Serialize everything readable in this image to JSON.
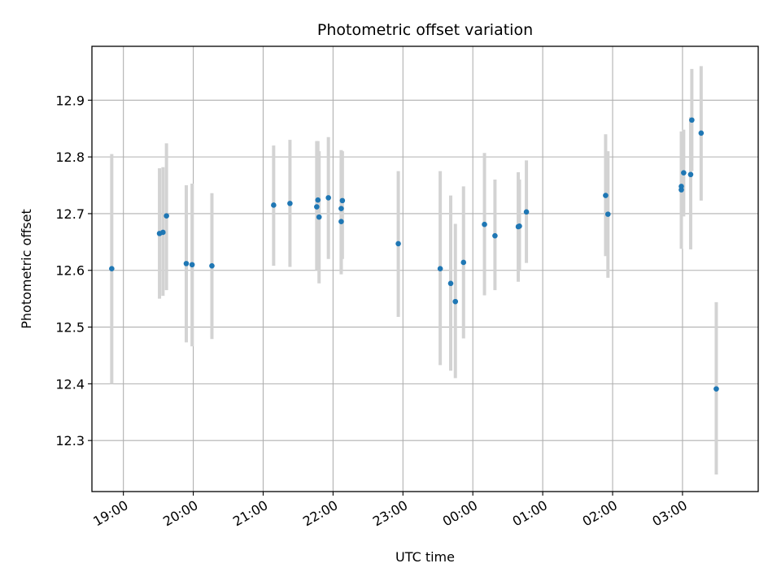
{
  "chart_data": {
    "type": "scatter",
    "title": "Photometric offset variation",
    "xlabel": "UTC time",
    "ylabel": "Photometric offset",
    "x_unit": "UTC time (HH:MM), points after midnight on the following day",
    "xlim": [
      "18:33",
      "04:05"
    ],
    "ylim": [
      12.21,
      12.995
    ],
    "x_ticks": [
      "19:00",
      "20:00",
      "21:00",
      "22:00",
      "23:00",
      "00:00",
      "01:00",
      "02:00",
      "03:00"
    ],
    "y_ticks": [
      12.3,
      12.4,
      12.5,
      12.6,
      12.7,
      12.8,
      12.9
    ],
    "grid": true,
    "colors": {
      "points": "#1f77b4",
      "errorbars": "#d3d3d3",
      "grid": "#b0b0b0"
    },
    "points": [
      {
        "x": "18:50",
        "y": 12.603,
        "lo": 12.4,
        "hi": 12.805
      },
      {
        "x": "19:31",
        "y": 12.665,
        "lo": 12.55,
        "hi": 12.78
      },
      {
        "x": "19:34",
        "y": 12.667,
        "lo": 12.555,
        "hi": 12.782
      },
      {
        "x": "19:37",
        "y": 12.696,
        "lo": 12.565,
        "hi": 12.824
      },
      {
        "x": "19:54",
        "y": 12.612,
        "lo": 12.473,
        "hi": 12.75
      },
      {
        "x": "19:59",
        "y": 12.61,
        "lo": 12.466,
        "hi": 12.753
      },
      {
        "x": "20:16",
        "y": 12.608,
        "lo": 12.479,
        "hi": 12.736
      },
      {
        "x": "21:09",
        "y": 12.715,
        "lo": 12.608,
        "hi": 12.82
      },
      {
        "x": "21:23",
        "y": 12.718,
        "lo": 12.606,
        "hi": 12.83
      },
      {
        "x": "21:46",
        "y": 12.712,
        "lo": 12.6,
        "hi": 12.828
      },
      {
        "x": "21:47",
        "y": 12.724,
        "lo": 12.61,
        "hi": 12.828
      },
      {
        "x": "21:48",
        "y": 12.694,
        "lo": 12.577,
        "hi": 12.81
      },
      {
        "x": "21:56",
        "y": 12.728,
        "lo": 12.62,
        "hi": 12.835
      },
      {
        "x": "22:07",
        "y": 12.686,
        "lo": 12.593,
        "hi": 12.79
      },
      {
        "x": "22:07",
        "y": 12.709,
        "lo": 12.6,
        "hi": 12.812
      },
      {
        "x": "22:08",
        "y": 12.723,
        "lo": 12.62,
        "hi": 12.81
      },
      {
        "x": "22:56",
        "y": 12.647,
        "lo": 12.518,
        "hi": 12.775
      },
      {
        "x": "23:32",
        "y": 12.603,
        "lo": 12.433,
        "hi": 12.775
      },
      {
        "x": "23:41",
        "y": 12.577,
        "lo": 12.423,
        "hi": 12.732
      },
      {
        "x": "23:45",
        "y": 12.545,
        "lo": 12.41,
        "hi": 12.682
      },
      {
        "x": "23:52",
        "y": 12.614,
        "lo": 12.48,
        "hi": 12.748
      },
      {
        "x": "00:10",
        "y": 12.681,
        "lo": 12.556,
        "hi": 12.807
      },
      {
        "x": "00:19",
        "y": 12.661,
        "lo": 12.565,
        "hi": 12.76
      },
      {
        "x": "00:39",
        "y": 12.677,
        "lo": 12.58,
        "hi": 12.773
      },
      {
        "x": "00:40",
        "y": 12.678,
        "lo": 12.6,
        "hi": 12.76
      },
      {
        "x": "00:46",
        "y": 12.703,
        "lo": 12.613,
        "hi": 12.794
      },
      {
        "x": "01:54",
        "y": 12.732,
        "lo": 12.625,
        "hi": 12.84
      },
      {
        "x": "01:56",
        "y": 12.699,
        "lo": 12.587,
        "hi": 12.81
      },
      {
        "x": "02:59",
        "y": 12.742,
        "lo": 12.638,
        "hi": 12.845
      },
      {
        "x": "02:59",
        "y": 12.748,
        "lo": 12.655,
        "hi": 12.84
      },
      {
        "x": "03:01",
        "y": 12.772,
        "lo": 12.695,
        "hi": 12.848
      },
      {
        "x": "03:07",
        "y": 12.769,
        "lo": 12.637,
        "hi": 12.87
      },
      {
        "x": "03:08",
        "y": 12.865,
        "lo": 12.775,
        "hi": 12.955
      },
      {
        "x": "03:16",
        "y": 12.842,
        "lo": 12.723,
        "hi": 12.96
      },
      {
        "x": "03:29",
        "y": 12.391,
        "lo": 12.24,
        "hi": 12.544
      }
    ]
  }
}
